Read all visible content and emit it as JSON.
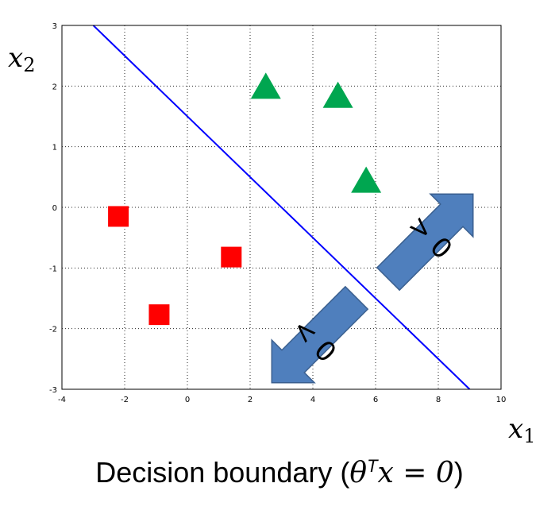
{
  "chart_data": {
    "type": "scatter",
    "xlabel": "x",
    "xlabel_sub": "1",
    "ylabel": "x",
    "ylabel_sub": "2",
    "xlim": [
      -4,
      10
    ],
    "ylim": [
      -3,
      3
    ],
    "xticks": [
      -4,
      -2,
      0,
      2,
      4,
      6,
      8,
      10
    ],
    "yticks": [
      -3,
      -2,
      -1,
      0,
      1,
      2,
      3
    ],
    "grid": true,
    "series": [
      {
        "marker": "square",
        "color": "#ff0000",
        "points": [
          [
            -2.2,
            -0.15
          ],
          [
            1.4,
            -0.82
          ],
          [
            -0.9,
            -1.77
          ]
        ]
      },
      {
        "marker": "triangle",
        "color": "#00a650",
        "points": [
          [
            2.5,
            2.0
          ],
          [
            4.8,
            1.85
          ],
          [
            5.7,
            0.45
          ]
        ]
      }
    ],
    "boundary": {
      "color": "#0000ff",
      "points": [
        [
          -3.0,
          3.0
        ],
        [
          9.0,
          -3.0
        ]
      ]
    },
    "annotations": [
      {
        "text": "> 0",
        "color": "#4f7fbd",
        "direction": "up-right"
      },
      {
        "text": "< 0",
        "color": "#4f7fbd",
        "direction": "down-left"
      }
    ],
    "caption": {
      "prefix": "Decision boundary (",
      "theta": "θ",
      "sup": "T",
      "expr": "x = 0",
      "suffix": ")"
    }
  }
}
